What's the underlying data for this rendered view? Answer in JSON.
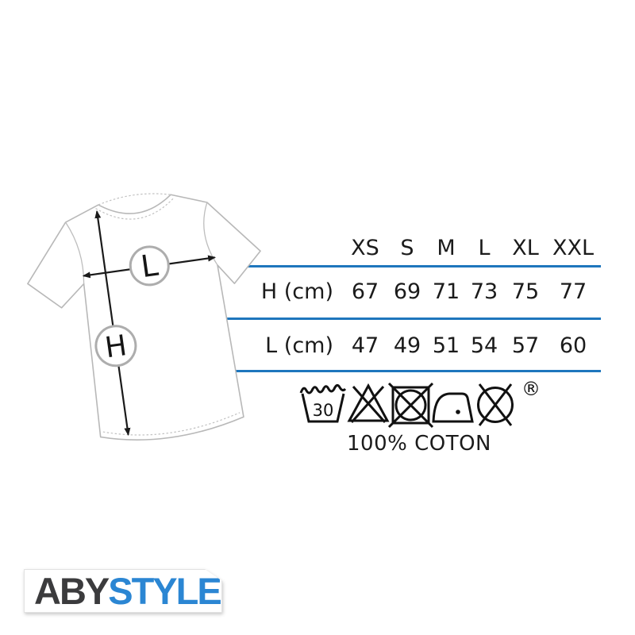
{
  "size_chart": {
    "sizes": [
      "XS",
      "S",
      "M",
      "L",
      "XL",
      "XXL"
    ],
    "rows": [
      {
        "label": "H (cm)",
        "values": [
          "67",
          "69",
          "71",
          "73",
          "75",
          "77"
        ]
      },
      {
        "label": "L (cm)",
        "values": [
          "47",
          "49",
          "51",
          "54",
          "57",
          "60"
        ]
      }
    ]
  },
  "diagram": {
    "length_label": "L",
    "height_label": "H"
  },
  "care": {
    "wash_temperature": "30",
    "registered_mark": "®",
    "composition": "100% COTON",
    "icons": [
      "wash-30-icon",
      "do-not-bleach-icon",
      "do-not-tumble-dry-icon",
      "iron-one-dot-icon",
      "do-not-dry-clean-icon"
    ]
  },
  "brand": {
    "primary": "ABY",
    "secondary": "STYLE"
  },
  "colors": {
    "accent_blue": "#1e76bd",
    "logo_blue": "#2b86d3",
    "logo_dark": "#3b3b3d",
    "text_dark": "#1b1b1b"
  }
}
